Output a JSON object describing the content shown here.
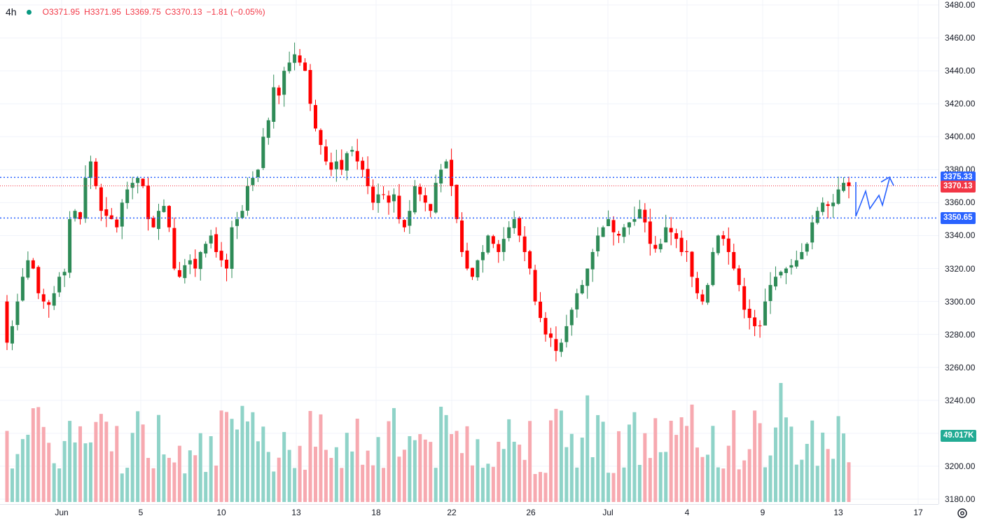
{
  "legend": {
    "timeframe": "4h",
    "open": "O3371.95",
    "high": "H3371.95",
    "low": "L3369.75",
    "close": "C3370.13",
    "change": "−1.81 (−0.05%)"
  },
  "colors": {
    "up": "#26a69a",
    "up_body": "#2e8b57",
    "down": "#ff0000",
    "up_vol": "#8fd3c8",
    "down_vol": "#f7a9b0",
    "level_line": "#2962ff",
    "price_line": "#f23645",
    "projection": "#2962ff",
    "grid": "#f0f3fa"
  },
  "price_axis": {
    "ticks": [
      "3480.00",
      "3460.00",
      "3440.00",
      "3420.00",
      "3400.00",
      "3380.00",
      "3360.00",
      "3340.00",
      "3320.00",
      "3300.00",
      "3280.00",
      "3260.00",
      "3240.00",
      "3220.00",
      "3200.00",
      "3180.00"
    ]
  },
  "badges": {
    "resistance": "3375.33",
    "last_price": "3370.13",
    "support": "3350.65",
    "volume": "49.017K"
  },
  "time_axis": {
    "labels": [
      "Jun",
      "5",
      "10",
      "13",
      "18",
      "22",
      "26",
      "Jul",
      "4",
      "9",
      "13",
      "17"
    ]
  },
  "icons": {
    "eye": "eye-icon",
    "settings": "gear-icon"
  },
  "chart_data": {
    "type": "candlestick",
    "timeframe": "4h",
    "levels": [
      3375.33,
      3370.13,
      3350.65
    ],
    "price_range": [
      3180,
      3480
    ],
    "closes": [
      3275,
      3285,
      3300,
      3315,
      3325,
      3320,
      3305,
      3300,
      3298,
      3305,
      3315,
      3318,
      3350,
      3355,
      3350,
      3375,
      3385,
      3370,
      3355,
      3352,
      3350,
      3345,
      3360,
      3368,
      3372,
      3375,
      3370,
      3350,
      3345,
      3355,
      3358,
      3345,
      3320,
      3315,
      3322,
      3325,
      3320,
      3330,
      3335,
      3340,
      3330,
      3325,
      3320,
      3345,
      3350,
      3355,
      3370,
      3375,
      3380,
      3400,
      3410,
      3430,
      3425,
      3440,
      3445,
      3450,
      3445,
      3440,
      3420,
      3405,
      3395,
      3385,
      3380,
      3385,
      3380,
      3390,
      3392,
      3385,
      3380,
      3370,
      3360,
      3365,
      3365,
      3360,
      3365,
      3350,
      3345,
      3355,
      3370,
      3365,
      3360,
      3355,
      3372,
      3380,
      3385,
      3370,
      3350,
      3330,
      3320,
      3315,
      3325,
      3330,
      3340,
      3335,
      3330,
      3338,
      3345,
      3350,
      3340,
      3330,
      3320,
      3300,
      3290,
      3280,
      3278,
      3270,
      3275,
      3285,
      3295,
      3305,
      3310,
      3320,
      3330,
      3340,
      3345,
      3350,
      3342,
      3340,
      3345,
      3348,
      3350,
      3356,
      3348,
      3335,
      3332,
      3335,
      3345,
      3342,
      3338,
      3330,
      3330,
      3315,
      3305,
      3300,
      3310,
      3330,
      3340,
      3338,
      3330,
      3320,
      3310,
      3295,
      3290,
      3285,
      3285,
      3300,
      3310,
      3315,
      3318,
      3320,
      3322,
      3325,
      3330,
      3335,
      3348,
      3355,
      3360,
      3358,
      3360,
      3368,
      3372,
      3370
    ]
  }
}
